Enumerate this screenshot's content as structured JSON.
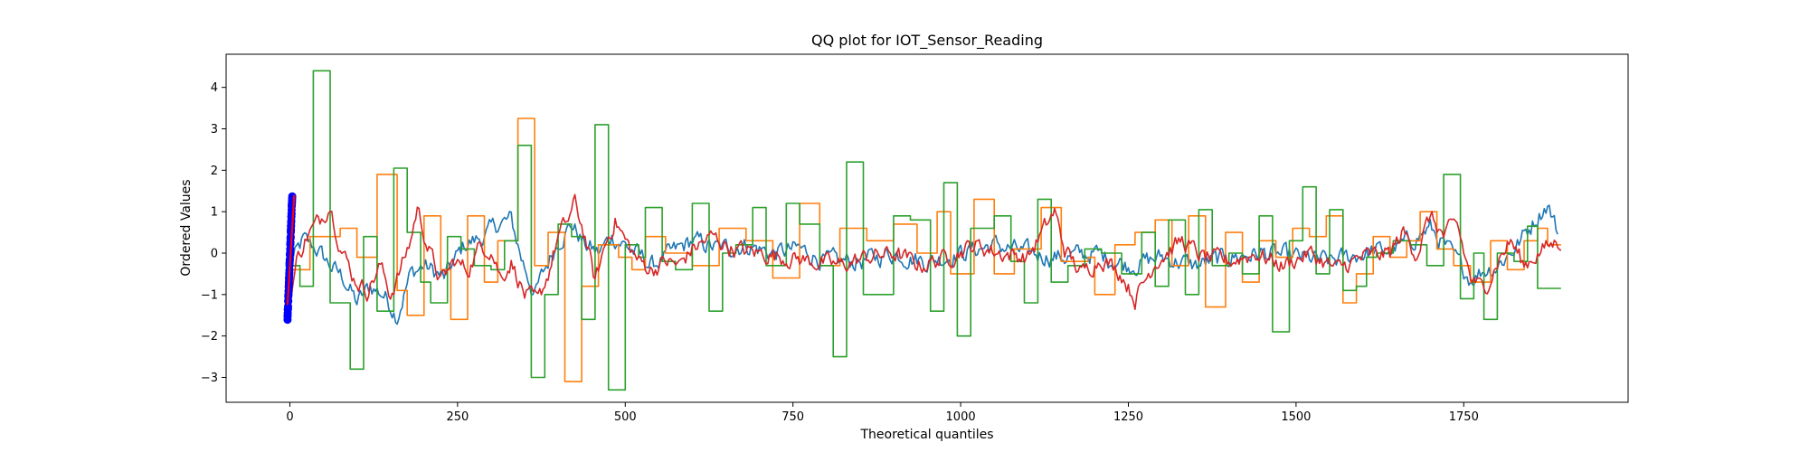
{
  "chart_data": {
    "type": "line",
    "title": "QQ plot for IOT_Sensor_Reading",
    "xlabel": "Theoretical quantiles",
    "ylabel": "Ordered Values",
    "xlim": [
      -95,
      1995
    ],
    "ylim": [
      -3.6,
      4.8
    ],
    "xticks": [
      0,
      250,
      500,
      750,
      1000,
      1250,
      1500,
      1750
    ],
    "yticks": [
      -3,
      -2,
      -1,
      0,
      1,
      2,
      3,
      4
    ],
    "grid": false,
    "legend": "none",
    "series": [
      {
        "color": "#1f77b4",
        "kind": "noisy-line",
        "anchors": [
          [
            0,
            -0.3
          ],
          [
            20,
            0.3
          ],
          [
            40,
            0.1
          ],
          [
            60,
            -0.3
          ],
          [
            80,
            -0.6
          ],
          [
            100,
            -1.2
          ],
          [
            120,
            -0.8
          ],
          [
            140,
            -1.0
          ],
          [
            160,
            -1.5
          ],
          [
            180,
            -0.5
          ],
          [
            200,
            -0.3
          ],
          [
            230,
            -0.6
          ],
          [
            260,
            0.2
          ],
          [
            290,
            0.4
          ],
          [
            310,
            0.7
          ],
          [
            330,
            0.8
          ],
          [
            345,
            -0.1
          ],
          [
            365,
            -1.0
          ],
          [
            380,
            -0.4
          ],
          [
            400,
            0.3
          ],
          [
            420,
            0.7
          ],
          [
            440,
            0.2
          ],
          [
            460,
            0.0
          ],
          [
            480,
            0.4
          ],
          [
            500,
            0.2
          ],
          [
            540,
            -0.3
          ],
          [
            570,
            0.0
          ],
          [
            600,
            0.3
          ],
          [
            640,
            0.1
          ],
          [
            680,
            0.2
          ],
          [
            720,
            0.0
          ],
          [
            760,
            0.1
          ],
          [
            800,
            -0.2
          ],
          [
            850,
            -0.2
          ],
          [
            900,
            0.0
          ],
          [
            950,
            -0.2
          ],
          [
            1000,
            0.0
          ],
          [
            1050,
            0.2
          ],
          [
            1100,
            0.0
          ],
          [
            1150,
            -0.1
          ],
          [
            1200,
            0.0
          ],
          [
            1250,
            -0.3
          ],
          [
            1300,
            -0.1
          ],
          [
            1350,
            -0.3
          ],
          [
            1400,
            -0.1
          ],
          [
            1450,
            0.0
          ],
          [
            1500,
            -0.1
          ],
          [
            1550,
            -0.2
          ],
          [
            1600,
            0.0
          ],
          [
            1650,
            0.1
          ],
          [
            1700,
            0.6
          ],
          [
            1720,
            0.2
          ],
          [
            1740,
            -0.2
          ],
          [
            1760,
            -0.6
          ],
          [
            1780,
            -0.4
          ],
          [
            1800,
            -0.3
          ],
          [
            1830,
            0.2
          ],
          [
            1860,
            0.9
          ],
          [
            1875,
            1.2
          ],
          [
            1890,
            0.5
          ]
        ],
        "noise": 0.22
      },
      {
        "color": "#ff7f0e",
        "kind": "steps",
        "steps": [
          [
            0,
            -0.4
          ],
          [
            30,
            0.4
          ],
          [
            75,
            0.6
          ],
          [
            100,
            -0.1
          ],
          [
            130,
            1.9
          ],
          [
            160,
            -0.9
          ],
          [
            175,
            -1.5
          ],
          [
            200,
            0.9
          ],
          [
            225,
            -0.4
          ],
          [
            240,
            -1.6
          ],
          [
            265,
            0.9
          ],
          [
            290,
            -0.7
          ],
          [
            310,
            0.3
          ],
          [
            340,
            3.25
          ],
          [
            365,
            -0.3
          ],
          [
            385,
            0.5
          ],
          [
            410,
            -3.1
          ],
          [
            435,
            -0.8
          ],
          [
            460,
            0.2
          ],
          [
            490,
            -0.1
          ],
          [
            510,
            -0.4
          ],
          [
            530,
            0.4
          ],
          [
            560,
            0.0
          ],
          [
            600,
            -0.3
          ],
          [
            640,
            0.6
          ],
          [
            680,
            0.3
          ],
          [
            720,
            -0.6
          ],
          [
            760,
            1.2
          ],
          [
            790,
            -0.3
          ],
          [
            820,
            0.6
          ],
          [
            860,
            0.3
          ],
          [
            900,
            0.7
          ],
          [
            935,
            0.0
          ],
          [
            965,
            1.0
          ],
          [
            985,
            -0.5
          ],
          [
            1020,
            1.3
          ],
          [
            1050,
            -0.5
          ],
          [
            1080,
            0.1
          ],
          [
            1120,
            1.1
          ],
          [
            1150,
            -0.2
          ],
          [
            1190,
            -0.1
          ],
          [
            1200,
            -1.0
          ],
          [
            1230,
            0.2
          ],
          [
            1260,
            0.5
          ],
          [
            1290,
            0.8
          ],
          [
            1315,
            -0.3
          ],
          [
            1340,
            0.9
          ],
          [
            1365,
            -1.3
          ],
          [
            1395,
            0.5
          ],
          [
            1420,
            -0.7
          ],
          [
            1445,
            0.3
          ],
          [
            1470,
            -0.1
          ],
          [
            1495,
            0.6
          ],
          [
            1520,
            0.4
          ],
          [
            1545,
            0.9
          ],
          [
            1570,
            -1.2
          ],
          [
            1590,
            -0.5
          ],
          [
            1615,
            0.4
          ],
          [
            1640,
            -0.1
          ],
          [
            1665,
            0.3
          ],
          [
            1685,
            1.0
          ],
          [
            1710,
            0.1
          ],
          [
            1735,
            -0.3
          ],
          [
            1760,
            -0.7
          ],
          [
            1790,
            0.3
          ],
          [
            1815,
            -0.4
          ],
          [
            1840,
            0.3
          ],
          [
            1860,
            0.6
          ],
          [
            1875,
            0.2
          ],
          [
            1895,
            0.2
          ]
        ]
      },
      {
        "color": "#2ca02c",
        "kind": "steps",
        "steps": [
          [
            0,
            -0.3
          ],
          [
            15,
            -0.8
          ],
          [
            35,
            4.4
          ],
          [
            60,
            -1.2
          ],
          [
            90,
            -2.8
          ],
          [
            110,
            0.4
          ],
          [
            130,
            -1.4
          ],
          [
            155,
            2.05
          ],
          [
            175,
            0.5
          ],
          [
            195,
            -0.7
          ],
          [
            210,
            -1.2
          ],
          [
            235,
            0.4
          ],
          [
            255,
            0.1
          ],
          [
            275,
            -0.3
          ],
          [
            300,
            -0.4
          ],
          [
            320,
            0.3
          ],
          [
            340,
            2.6
          ],
          [
            360,
            -3.0
          ],
          [
            380,
            -1.0
          ],
          [
            400,
            0.7
          ],
          [
            420,
            0.4
          ],
          [
            435,
            -1.6
          ],
          [
            455,
            3.1
          ],
          [
            475,
            -3.3
          ],
          [
            500,
            0.2
          ],
          [
            520,
            -0.1
          ],
          [
            530,
            1.1
          ],
          [
            555,
            -0.2
          ],
          [
            575,
            -0.4
          ],
          [
            600,
            1.2
          ],
          [
            625,
            -1.4
          ],
          [
            645,
            0.0
          ],
          [
            665,
            0.2
          ],
          [
            690,
            1.1
          ],
          [
            710,
            -0.3
          ],
          [
            740,
            1.2
          ],
          [
            760,
            0.7
          ],
          [
            790,
            -0.3
          ],
          [
            810,
            -2.5
          ],
          [
            830,
            2.2
          ],
          [
            855,
            -1.0
          ],
          [
            900,
            0.9
          ],
          [
            925,
            0.8
          ],
          [
            955,
            -1.4
          ],
          [
            975,
            1.7
          ],
          [
            995,
            -2.0
          ],
          [
            1015,
            0.6
          ],
          [
            1050,
            0.9
          ],
          [
            1075,
            -0.2
          ],
          [
            1095,
            -1.2
          ],
          [
            1115,
            1.3
          ],
          [
            1135,
            -0.7
          ],
          [
            1160,
            -0.3
          ],
          [
            1185,
            0.1
          ],
          [
            1210,
            0.0
          ],
          [
            1240,
            -0.5
          ],
          [
            1270,
            0.5
          ],
          [
            1290,
            -0.8
          ],
          [
            1310,
            0.8
          ],
          [
            1335,
            -1.0
          ],
          [
            1355,
            1.05
          ],
          [
            1375,
            -0.3
          ],
          [
            1400,
            0.0
          ],
          [
            1420,
            -0.5
          ],
          [
            1445,
            0.9
          ],
          [
            1465,
            -1.9
          ],
          [
            1490,
            0.3
          ],
          [
            1510,
            1.6
          ],
          [
            1530,
            -0.5
          ],
          [
            1550,
            1.05
          ],
          [
            1570,
            -0.9
          ],
          [
            1590,
            -0.8
          ],
          [
            1605,
            -0.1
          ],
          [
            1620,
            0.0
          ],
          [
            1645,
            0.3
          ],
          [
            1670,
            0.2
          ],
          [
            1695,
            -0.3
          ],
          [
            1720,
            1.9
          ],
          [
            1745,
            -1.1
          ],
          [
            1765,
            0.0
          ],
          [
            1780,
            -1.6
          ],
          [
            1800,
            0.0
          ],
          [
            1825,
            -0.2
          ],
          [
            1845,
            0.65
          ],
          [
            1860,
            -0.85
          ],
          [
            1880,
            -0.85
          ],
          [
            1895,
            -0.85
          ]
        ]
      },
      {
        "color": "#d62728",
        "kind": "noisy-line",
        "anchors": [
          [
            0,
            -1.1
          ],
          [
            10,
            -0.2
          ],
          [
            25,
            0.4
          ],
          [
            45,
            0.8
          ],
          [
            60,
            1.2
          ],
          [
            75,
            0.2
          ],
          [
            95,
            -0.6
          ],
          [
            115,
            -0.9
          ],
          [
            135,
            -0.3
          ],
          [
            150,
            -1.0
          ],
          [
            165,
            -0.4
          ],
          [
            180,
            0.3
          ],
          [
            190,
            1.1
          ],
          [
            205,
            0.2
          ],
          [
            225,
            -0.7
          ],
          [
            245,
            -0.2
          ],
          [
            265,
            -0.4
          ],
          [
            285,
            0.2
          ],
          [
            300,
            0.1
          ],
          [
            315,
            -0.6
          ],
          [
            330,
            -0.2
          ],
          [
            350,
            -1.0
          ],
          [
            370,
            -1.2
          ],
          [
            385,
            -0.5
          ],
          [
            400,
            0.4
          ],
          [
            415,
            0.8
          ],
          [
            425,
            1.2
          ],
          [
            440,
            0.4
          ],
          [
            455,
            -0.7
          ],
          [
            470,
            0.2
          ],
          [
            485,
            0.8
          ],
          [
            500,
            0.3
          ],
          [
            520,
            -0.2
          ],
          [
            540,
            -0.4
          ],
          [
            560,
            -0.2
          ],
          [
            580,
            -0.3
          ],
          [
            600,
            0.1
          ],
          [
            630,
            0.4
          ],
          [
            660,
            0.1
          ],
          [
            700,
            0.0
          ],
          [
            740,
            -0.1
          ],
          [
            780,
            -0.2
          ],
          [
            820,
            -0.3
          ],
          [
            860,
            -0.1
          ],
          [
            900,
            0.0
          ],
          [
            940,
            -0.3
          ],
          [
            980,
            -0.1
          ],
          [
            1020,
            0.2
          ],
          [
            1060,
            0.0
          ],
          [
            1100,
            -0.1
          ],
          [
            1140,
            1.0
          ],
          [
            1155,
            0.1
          ],
          [
            1180,
            -0.5
          ],
          [
            1210,
            -0.1
          ],
          [
            1240,
            -0.5
          ],
          [
            1260,
            -1.1
          ],
          [
            1290,
            -0.2
          ],
          [
            1330,
            0.3
          ],
          [
            1360,
            -0.1
          ],
          [
            1400,
            -0.2
          ],
          [
            1440,
            0.0
          ],
          [
            1480,
            -0.3
          ],
          [
            1520,
            0.0
          ],
          [
            1560,
            -0.4
          ],
          [
            1600,
            -0.1
          ],
          [
            1640,
            0.0
          ],
          [
            1660,
            0.5
          ],
          [
            1680,
            0.0
          ],
          [
            1700,
            0.9
          ],
          [
            1720,
            0.4
          ],
          [
            1740,
            0.7
          ],
          [
            1760,
            -0.6
          ],
          [
            1780,
            -0.9
          ],
          [
            1800,
            -0.2
          ],
          [
            1820,
            0.3
          ],
          [
            1840,
            -0.3
          ],
          [
            1860,
            0.0
          ],
          [
            1880,
            0.2
          ],
          [
            1895,
            0.3
          ]
        ],
        "noise": 0.2
      }
    ],
    "scatter": {
      "color": "#0000ff",
      "line_color": "#ff0000",
      "x_range": [
        -3.5,
        3.5
      ],
      "y_range": [
        -1.6,
        1.4
      ],
      "count": 60
    }
  }
}
